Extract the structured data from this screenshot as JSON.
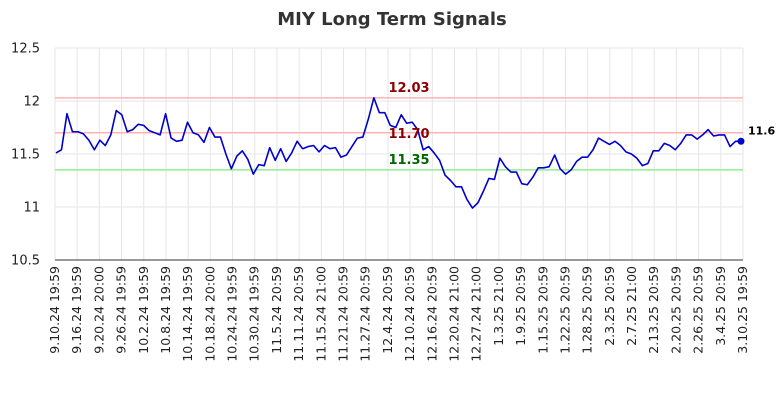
{
  "chart_data": {
    "type": "line",
    "title": "MIY Long Term Signals",
    "xlabel": "",
    "ylabel": "",
    "ylim": [
      10.5,
      12.5
    ],
    "yticks": [
      "10.5",
      "11",
      "11.5",
      "12",
      "12.5"
    ],
    "xtick_labels": [
      "9.10.24 19:59",
      "9.16.24 19:59",
      "9.20.24 20:00",
      "9.26.24 19:59",
      "10.2.24 19:59",
      "10.8.24 19:59",
      "10.14.24 19:59",
      "10.18.24 20:00",
      "10.24.24 19:59",
      "10.30.24 19:59",
      "11.5.24 20:59",
      "11.11.24 20:59",
      "11.15.24 21:00",
      "11.21.24 20:59",
      "11.27.24 20:59",
      "12.4.24 20:59",
      "12.10.24 20:59",
      "12.16.24 20:59",
      "12.20.24 21:00",
      "12.27.24 21:00",
      "1.3.25 21:00",
      "1.9.25 20:59",
      "1.15.25 20:59",
      "1.22.25 20:59",
      "1.28.25 20:59",
      "2.3.25 20:59",
      "2.7.25 21:00",
      "2.13.25 20:59",
      "2.20.25 20:59",
      "2.26.25 20:59",
      "3.4.25 20:59",
      "3.10.25 19:59"
    ],
    "grid": true,
    "series": [
      {
        "color": "#0000cc",
        "values": [
          11.51,
          11.54,
          11.88,
          11.71,
          11.71,
          11.69,
          11.63,
          11.54,
          11.63,
          11.58,
          11.68,
          11.91,
          11.87,
          11.71,
          11.73,
          11.78,
          11.77,
          11.72,
          11.7,
          11.68,
          11.88,
          11.65,
          11.62,
          11.63,
          11.8,
          11.7,
          11.68,
          11.61,
          11.75,
          11.66,
          11.66,
          11.5,
          11.36,
          11.48,
          11.53,
          11.45,
          11.31,
          11.4,
          11.39,
          11.56,
          11.44,
          11.55,
          11.43,
          11.51,
          11.62,
          11.55,
          11.57,
          11.58,
          11.52,
          11.58,
          11.55,
          11.56,
          11.47,
          11.49,
          11.57,
          11.65,
          11.66,
          11.83,
          12.03,
          11.89,
          11.89,
          11.77,
          11.75,
          11.87,
          11.79,
          11.8,
          11.73,
          11.54,
          11.57,
          11.51,
          11.44,
          11.3,
          11.25,
          11.19,
          11.19,
          11.07,
          10.99,
          11.04,
          11.15,
          11.27,
          11.26,
          11.46,
          11.38,
          11.33,
          11.33,
          11.22,
          11.21,
          11.28,
          11.37,
          11.37,
          11.38,
          11.49,
          11.36,
          11.31,
          11.35,
          11.43,
          11.47,
          11.47,
          11.54,
          11.65,
          11.62,
          11.59,
          11.62,
          11.58,
          11.52,
          11.5,
          11.46,
          11.39,
          11.41,
          11.53,
          11.53,
          11.6,
          11.58,
          11.54,
          11.6,
          11.68,
          11.68,
          11.64,
          11.68,
          11.73,
          11.67,
          11.68,
          11.68,
          11.57,
          11.62,
          11.62
        ]
      }
    ],
    "hlines": [
      {
        "value": 12.03,
        "label": "12.03",
        "line_color": "#ffb3b3",
        "label_color": "#8b0000",
        "label_pos": "above"
      },
      {
        "value": 11.7,
        "label": "11.70",
        "line_color": "#ffb3b3",
        "label_color": "#8b0000",
        "label_pos": "on"
      },
      {
        "value": 11.35,
        "label": "11.35",
        "line_color": "#90ee90",
        "label_color": "#006400",
        "label_pos": "above"
      }
    ],
    "end_label": "11.6",
    "end_point_color": "#0000cc"
  }
}
